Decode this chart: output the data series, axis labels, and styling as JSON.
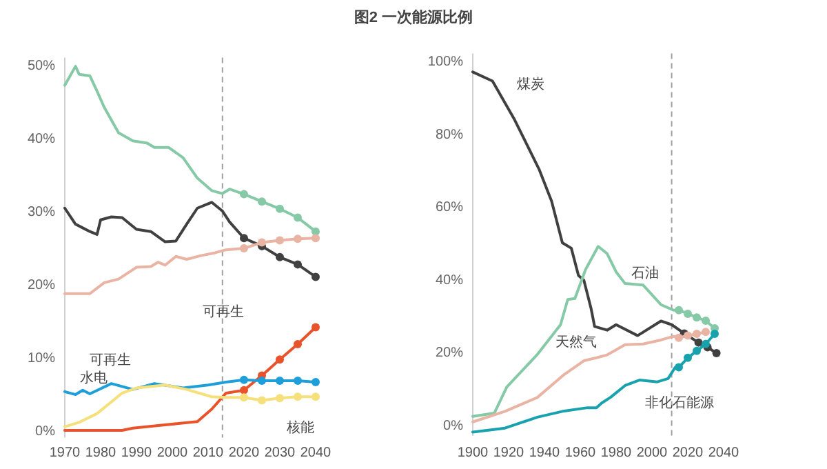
{
  "chart_data": [
    {
      "type": "other",
      "title": "图2 一次能源比例"
    },
    {
      "type": "line",
      "xlim": [
        1970,
        2040
      ],
      "ylim": [
        -1,
        51
      ],
      "xticks": [
        1970,
        1980,
        1990,
        2000,
        2010,
        2020,
        2030,
        2040
      ],
      "yticks": [
        {
          "value": 0,
          "label": "0%"
        },
        {
          "value": 10,
          "label": "10%"
        },
        {
          "value": 20,
          "label": "20%"
        },
        {
          "value": 30,
          "label": "30%"
        },
        {
          "value": 40,
          "label": "40%"
        },
        {
          "value": 50,
          "label": "50%"
        }
      ],
      "ref_lines": [
        {
          "axis": "x",
          "value": 2014,
          "color": "#a0a0a0",
          "line_style": "dashed"
        }
      ],
      "series": [
        {
          "color": "#86c9a6",
          "x": [
            1970,
            1973,
            1974,
            1977,
            1979,
            1981,
            1985,
            1989,
            1993,
            1995,
            1999,
            2003,
            2007,
            2011,
            2014,
            2016,
            2020
          ],
          "values": [
            47.2,
            49.8,
            48.7,
            48.5,
            46.4,
            44.2,
            40.7,
            39.6,
            39.3,
            38.7,
            38.7,
            37.3,
            34.5,
            32.8,
            32.4,
            33,
            32.3
          ]
        },
        {
          "color": "#86c9a6",
          "marker": "circle",
          "x": [
            2020,
            2025,
            2030,
            2035,
            2040
          ],
          "values": [
            32.3,
            31.3,
            30.3,
            29.1,
            27.2
          ]
        },
        {
          "color": "#404040",
          "x": [
            1970,
            1973,
            1975,
            1977,
            1979,
            1980,
            1983,
            1986,
            1990,
            1994,
            1998,
            2001,
            2004,
            2007,
            2011,
            2014,
            2016,
            2020
          ],
          "values": [
            30.4,
            28.2,
            27.7,
            27.2,
            26.8,
            28.8,
            29.2,
            29.1,
            27.5,
            27.2,
            25.8,
            25.9,
            28.2,
            30.4,
            31.2,
            30,
            28.5,
            26.3
          ]
        },
        {
          "color": "#404040",
          "marker": "circle",
          "x": [
            2020,
            2025,
            2030,
            2035,
            2040
          ],
          "values": [
            26.3,
            25.2,
            23.7,
            22.7,
            21
          ]
        },
        {
          "color": "#e9b4a3",
          "x": [
            1970,
            1977,
            1981,
            1985,
            1990,
            1994,
            1996,
            1998,
            2001,
            2004,
            2008,
            2012,
            2015,
            2020
          ],
          "values": [
            18.7,
            18.7,
            20.2,
            20.7,
            22.3,
            22.4,
            23,
            22.6,
            23.8,
            23.4,
            23.9,
            24.3,
            24.7,
            24.9
          ]
        },
        {
          "color": "#e9b4a3",
          "marker": "circle",
          "x": [
            2020,
            2025,
            2030,
            2035,
            2040
          ],
          "values": [
            24.9,
            25.7,
            26,
            26.2,
            26.3
          ]
        },
        {
          "color": "#e8532b",
          "x": [
            1970,
            1986,
            1989,
            1997,
            2007,
            2011,
            2015,
            2020
          ],
          "values": [
            0,
            0,
            0.3,
            0.7,
            1.2,
            2.9,
            5.1,
            5.5
          ]
        },
        {
          "color": "#e8532b",
          "marker": "circle",
          "x": [
            2020,
            2025,
            2030,
            2035,
            2040
          ],
          "values": [
            5.5,
            7.5,
            9.7,
            11.8,
            14.1
          ]
        },
        {
          "name": "水电",
          "color": "#1e9fd9",
          "x": [
            1970,
            1973,
            1975,
            1977,
            1983,
            1989,
            1995,
            2003,
            2010,
            2015,
            2020
          ],
          "values": [
            5.3,
            4.9,
            5.5,
            5,
            6.4,
            5.6,
            6.4,
            5.8,
            6.2,
            6.6,
            6.9
          ]
        },
        {
          "color": "#1e9fd9",
          "marker": "circle",
          "x": [
            2020,
            2025,
            2030,
            2035,
            2040
          ],
          "values": [
            6.9,
            6.8,
            6.8,
            6.8,
            6.6
          ]
        },
        {
          "color": "#f6e07c",
          "x": [
            1970,
            1974,
            1979,
            1986,
            1990,
            1998,
            2004,
            2011,
            2015,
            2020
          ],
          "values": [
            0.5,
            1.1,
            2.3,
            5.1,
            5.8,
            6.2,
            5.6,
            4.6,
            4.5,
            4.5
          ]
        },
        {
          "name": "核能",
          "color": "#f6e07c",
          "marker": "circle",
          "x": [
            2020,
            2025,
            2030,
            2035,
            2040
          ],
          "values": [
            4.5,
            4.1,
            4.4,
            4.6,
            4.6
          ]
        }
      ],
      "annotations": [
        "可再生",
        "可再生"
      ]
    },
    {
      "type": "line",
      "xlim": [
        1900,
        2040
      ],
      "ylim": [
        -3,
        102
      ],
      "xticks": [
        1900,
        1920,
        1940,
        1960,
        1980,
        2000,
        2020,
        2040
      ],
      "yticks": [
        {
          "value": 0,
          "label": "0%"
        },
        {
          "value": 20,
          "label": "20%"
        },
        {
          "value": 40,
          "label": "40%"
        },
        {
          "value": 60,
          "label": "60%"
        },
        {
          "value": 80,
          "label": "80%"
        },
        {
          "value": 100,
          "label": "100%"
        }
      ],
      "ref_lines": [
        {
          "axis": "x",
          "value": 2011,
          "color": "#a0a0a0",
          "line_style": "dashed"
        }
      ],
      "series": [
        {
          "name": "煤炭",
          "color": "#404040",
          "x": [
            1900,
            1911,
            1923,
            1937,
            1944,
            1950,
            1955,
            1959,
            1962,
            1966,
            1968,
            1975,
            1980,
            1992,
            2005,
            2011,
            2018
          ],
          "values": [
            96.9,
            94.4,
            84.1,
            70.2,
            61.4,
            50,
            48.5,
            41,
            39.7,
            32,
            27,
            26,
            27.5,
            24.5,
            28.5,
            27.5,
            25.1
          ]
        },
        {
          "color": "#404040",
          "marker": "circle",
          "x": [
            2018,
            2026,
            2031,
            2036
          ],
          "values": [
            25.1,
            22.6,
            21.3,
            19.7
          ]
        },
        {
          "name": "石油",
          "color": "#86c9a6",
          "x": [
            1900,
            1912,
            1919,
            1936,
            1949,
            1953,
            1957,
            1963,
            1970,
            1975,
            1980,
            1985,
            1995,
            2005,
            2012,
            2015
          ],
          "values": [
            2.3,
            3.2,
            10.4,
            19.3,
            27.5,
            34.4,
            34.7,
            42.7,
            49,
            47,
            42,
            38.8,
            38.4,
            33,
            31.5,
            31.5
          ]
        },
        {
          "color": "#86c9a6",
          "marker": "circle",
          "x": [
            2015,
            2020,
            2025,
            2030,
            2035
          ],
          "values": [
            31.5,
            30.5,
            29.5,
            28.6,
            26.5
          ]
        },
        {
          "name": "非化石能源",
          "color": "#17a2ad",
          "x": [
            1900,
            1918,
            1936,
            1951,
            1964,
            1969,
            1972,
            1977,
            1985,
            1993,
            2003,
            2009,
            2013,
            2015
          ],
          "values": [
            -2,
            -0.9,
            2.1,
            3.8,
            4.7,
            4.7,
            6,
            7.6,
            10.8,
            12.3,
            11.8,
            12.7,
            15.8,
            15.8
          ]
        },
        {
          "color": "#17a2ad",
          "marker": "circle",
          "x": [
            2015,
            2020,
            2025,
            2030,
            2035
          ],
          "values": [
            15.8,
            18.4,
            20.3,
            22.2,
            25
          ]
        },
        {
          "color": "#e9b4a3",
          "x": [
            1900,
            1918,
            1936,
            1951,
            1962,
            1969,
            1975,
            1985,
            1995,
            2005,
            2012,
            2015
          ],
          "values": [
            0.8,
            3.7,
            7.5,
            13.8,
            17.6,
            18.4,
            19.2,
            22,
            22.2,
            23.3,
            24.3,
            23.9
          ]
        },
        {
          "color": "#e9b4a3",
          "marker": "circle",
          "x": [
            2015,
            2020,
            2025,
            2030
          ],
          "values": [
            23.9,
            24.5,
            25,
            25.5
          ]
        }
      ],
      "annotations": [
        "天然气"
      ]
    }
  ]
}
